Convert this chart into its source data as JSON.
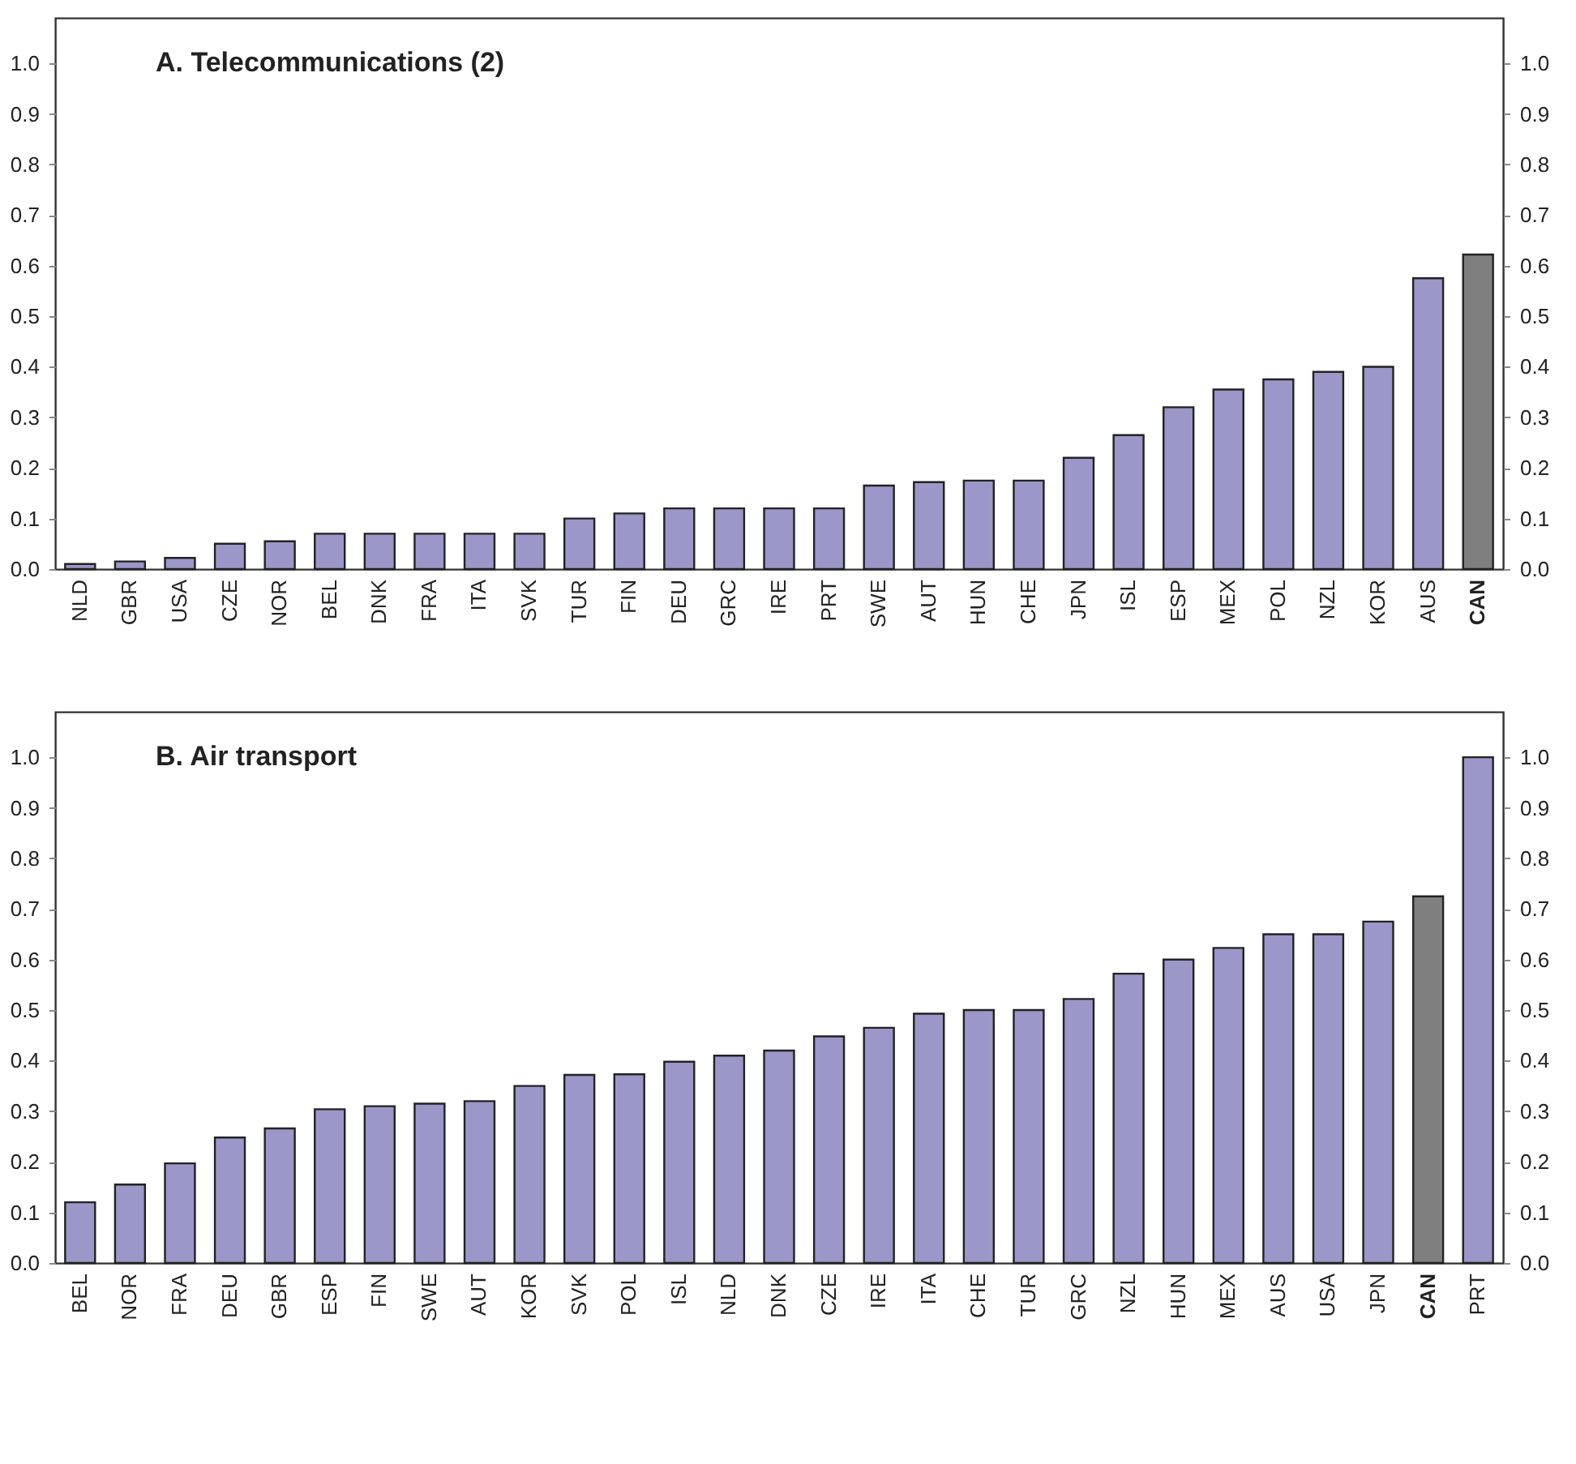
{
  "chart_data": [
    {
      "type": "bar",
      "title": "A. Telecommunications (2)",
      "categories": [
        "NLD",
        "GBR",
        "USA",
        "CZE",
        "NOR",
        "BEL",
        "DNK",
        "FRA",
        "ITA",
        "SVK",
        "TUR",
        "FIN",
        "DEU",
        "GRC",
        "IRE",
        "PRT",
        "SWE",
        "AUT",
        "HUN",
        "CHE",
        "JPN",
        "ISL",
        "ESP",
        "MEX",
        "POL",
        "NZL",
        "KOR",
        "AUS",
        "CAN"
      ],
      "values": [
        0.01,
        0.015,
        0.022,
        0.05,
        0.055,
        0.07,
        0.07,
        0.07,
        0.07,
        0.07,
        0.1,
        0.11,
        0.12,
        0.12,
        0.12,
        0.12,
        0.165,
        0.172,
        0.175,
        0.175,
        0.22,
        0.265,
        0.32,
        0.355,
        0.375,
        0.39,
        0.4,
        0.575,
        0.622
      ],
      "colors": [
        "#9b97c8",
        "#9b97c8",
        "#9b97c8",
        "#9b97c8",
        "#9b97c8",
        "#9b97c8",
        "#9b97c8",
        "#9b97c8",
        "#9b97c8",
        "#9b97c8",
        "#9b97c8",
        "#9b97c8",
        "#9b97c8",
        "#9b97c8",
        "#9b97c8",
        "#9b97c8",
        "#9b97c8",
        "#9b97c8",
        "#9b97c8",
        "#9b97c8",
        "#9b97c8",
        "#9b97c8",
        "#9b97c8",
        "#9b97c8",
        "#9b97c8",
        "#9b97c8",
        "#9b97c8",
        "#9b97c8",
        "#7f7f7f"
      ],
      "ylim": [
        0,
        1.09
      ],
      "yticks": [
        {
          "value": 0,
          "label": "0.0"
        },
        {
          "value": 0.1,
          "label": "0.1"
        },
        {
          "value": 0.2,
          "label": "0.2"
        },
        {
          "value": 0.3,
          "label": "0.3"
        },
        {
          "value": 0.4,
          "label": "0.4"
        },
        {
          "value": 0.5,
          "label": "0.5"
        },
        {
          "value": 0.6,
          "label": "0.6"
        },
        {
          "value": 0.7,
          "label": "0.7"
        },
        {
          "value": 0.8,
          "label": "0.8"
        },
        {
          "value": 0.9,
          "label": "0.9"
        },
        {
          "value": 1,
          "label": "1.0"
        }
      ],
      "y2lim": [
        0,
        1.09
      ],
      "y2ticks": [
        {
          "value": 0,
          "label": "0.0"
        },
        {
          "value": 0.1,
          "label": "0.1"
        },
        {
          "value": 0.2,
          "label": "0.2"
        },
        {
          "value": 0.3,
          "label": "0.3"
        },
        {
          "value": 0.4,
          "label": "0.4"
        },
        {
          "value": 0.5,
          "label": "0.5"
        },
        {
          "value": 0.6,
          "label": "0.6"
        },
        {
          "value": 0.7,
          "label": "0.7"
        },
        {
          "value": 0.8,
          "label": "0.8"
        },
        {
          "value": 0.9,
          "label": "0.9"
        },
        {
          "value": 1,
          "label": "1.0"
        }
      ],
      "grid": false,
      "legend": false
    },
    {
      "type": "bar",
      "title": "B. Air transport",
      "categories": [
        "BEL",
        "NOR",
        "FRA",
        "DEU",
        "GBR",
        "ESP",
        "FIN",
        "SWE",
        "AUT",
        "KOR",
        "SVK",
        "POL",
        "ISL",
        "NLD",
        "DNK",
        "CZE",
        "IRE",
        "ITA",
        "CHE",
        "TUR",
        "GRC",
        "NZL",
        "HUN",
        "MEX",
        "AUS",
        "USA",
        "JPN",
        "CAN",
        "PRT"
      ],
      "values": [
        0.12,
        0.155,
        0.197,
        0.248,
        0.266,
        0.304,
        0.31,
        0.315,
        0.32,
        0.35,
        0.372,
        0.373,
        0.398,
        0.41,
        0.42,
        0.448,
        0.465,
        0.493,
        0.5,
        0.5,
        0.522,
        0.572,
        0.6,
        0.623,
        0.65,
        0.65,
        0.675,
        0.725,
        1.0
      ],
      "colors": [
        "#9b97c8",
        "#9b97c8",
        "#9b97c8",
        "#9b97c8",
        "#9b97c8",
        "#9b97c8",
        "#9b97c8",
        "#9b97c8",
        "#9b97c8",
        "#9b97c8",
        "#9b97c8",
        "#9b97c8",
        "#9b97c8",
        "#9b97c8",
        "#9b97c8",
        "#9b97c8",
        "#9b97c8",
        "#9b97c8",
        "#9b97c8",
        "#9b97c8",
        "#9b97c8",
        "#9b97c8",
        "#9b97c8",
        "#9b97c8",
        "#9b97c8",
        "#9b97c8",
        "#9b97c8",
        "#7f7f7f",
        "#9b97c8"
      ],
      "ylim": [
        0,
        1.09
      ],
      "yticks": [
        {
          "value": 0,
          "label": "0.0"
        },
        {
          "value": 0.1,
          "label": "0.1"
        },
        {
          "value": 0.2,
          "label": "0.2"
        },
        {
          "value": 0.3,
          "label": "0.3"
        },
        {
          "value": 0.4,
          "label": "0.4"
        },
        {
          "value": 0.5,
          "label": "0.5"
        },
        {
          "value": 0.6,
          "label": "0.6"
        },
        {
          "value": 0.7,
          "label": "0.7"
        },
        {
          "value": 0.8,
          "label": "0.8"
        },
        {
          "value": 0.9,
          "label": "0.9"
        },
        {
          "value": 1,
          "label": "1.0"
        }
      ],
      "y2lim": [
        0,
        1.09
      ],
      "y2ticks": [
        {
          "value": 0,
          "label": "0.0"
        },
        {
          "value": 0.1,
          "label": "0.1"
        },
        {
          "value": 0.2,
          "label": "0.2"
        },
        {
          "value": 0.3,
          "label": "0.3"
        },
        {
          "value": 0.4,
          "label": "0.4"
        },
        {
          "value": 0.5,
          "label": "0.5"
        },
        {
          "value": 0.6,
          "label": "0.6"
        },
        {
          "value": 0.7,
          "label": "0.7"
        },
        {
          "value": 0.8,
          "label": "0.8"
        },
        {
          "value": 0.9,
          "label": "0.9"
        },
        {
          "value": 1,
          "label": "1.0"
        }
      ],
      "grid": false,
      "legend": false
    }
  ]
}
